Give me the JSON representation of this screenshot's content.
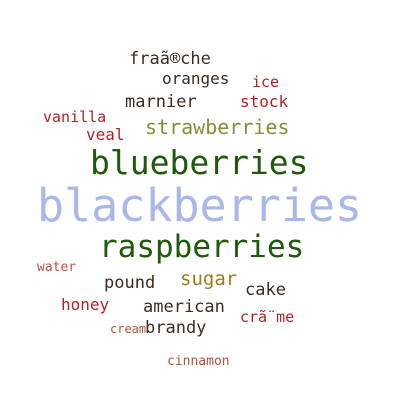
{
  "word_cloud": {
    "words": [
      {
        "id": "fraiche",
        "text": "fraã®che",
        "color": "#3d2b1f"
      },
      {
        "id": "oranges",
        "text": "oranges",
        "color": "#3d2b1f"
      },
      {
        "id": "ice",
        "text": "ice",
        "color": "#b22222"
      },
      {
        "id": "marnier",
        "text": "marnier",
        "color": "#3d2b1f"
      },
      {
        "id": "stock",
        "text": "stock",
        "color": "#b22222"
      },
      {
        "id": "vanilla",
        "text": "vanilla",
        "color": "#b22222"
      },
      {
        "id": "strawberries",
        "text": "strawberries",
        "color": "#8b8b3a"
      },
      {
        "id": "veal",
        "text": "veal",
        "color": "#b22222"
      },
      {
        "id": "blueberries",
        "text": "blueberries",
        "color": "#1e5a0a"
      },
      {
        "id": "blackberries",
        "text": "blackberries",
        "color": "#a9b8e8"
      },
      {
        "id": "raspberries",
        "text": "raspberries",
        "color": "#1e5a0a"
      },
      {
        "id": "water",
        "text": "water",
        "color": "#b5533c"
      },
      {
        "id": "pound",
        "text": "pound",
        "color": "#3d2b1f"
      },
      {
        "id": "sugar",
        "text": "sugar",
        "color": "#a07a1e"
      },
      {
        "id": "cake",
        "text": "cake",
        "color": "#3d2b1f"
      },
      {
        "id": "honey",
        "text": "honey",
        "color": "#b22222"
      },
      {
        "id": "american",
        "text": "american",
        "color": "#3d2b1f"
      },
      {
        "id": "brandy",
        "text": "brandy",
        "color": "#3d2b1f"
      },
      {
        "id": "creme",
        "text": "crã¨me",
        "color": "#b22222"
      },
      {
        "id": "cream",
        "text": "cream",
        "color": "#b5533c"
      },
      {
        "id": "cinnamon",
        "text": "cinnamon",
        "color": "#b5533c"
      }
    ]
  }
}
